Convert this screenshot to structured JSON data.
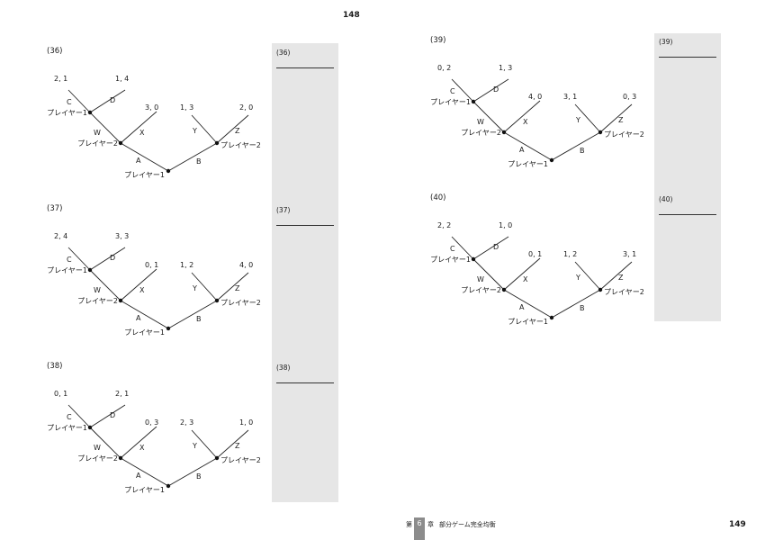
{
  "page_numbers": {
    "left": "148",
    "right": "149"
  },
  "footer": {
    "chapter_prefix": "第",
    "chapter_number": "6",
    "chapter_suffix": "章",
    "chapter_title": "部分ゲーム完全均衡"
  },
  "problems": [
    {
      "num": "(36)",
      "answer_label": "(36)",
      "payoffs": {
        "C": "2, 1",
        "D": "1, 4",
        "X": "3, 0",
        "Y": "1, 3",
        "Z": "2, 0"
      }
    },
    {
      "num": "(37)",
      "answer_label": "(37)",
      "payoffs": {
        "C": "2, 4",
        "D": "3, 3",
        "X": "0, 1",
        "Y": "1, 2",
        "Z": "4, 0"
      }
    },
    {
      "num": "(38)",
      "answer_label": "(38)",
      "payoffs": {
        "C": "0, 1",
        "D": "2, 1",
        "X": "0, 3",
        "Y": "2, 3",
        "Z": "1, 0"
      }
    },
    {
      "num": "(39)",
      "answer_label": "(39)",
      "payoffs": {
        "C": "0, 2",
        "D": "1, 3",
        "X": "4, 0",
        "Y": "3, 1",
        "Z": "0, 3"
      }
    },
    {
      "num": "(40)",
      "answer_label": "(40)",
      "payoffs": {
        "C": "2, 2",
        "D": "1, 0",
        "X": "0, 1",
        "Y": "1, 2",
        "Z": "3, 1"
      }
    }
  ],
  "tree_labels": {
    "player1": "プレイヤー1",
    "player2": "プレイヤー2",
    "edges": {
      "A": "A",
      "B": "B",
      "W": "W",
      "X": "X",
      "Y": "Y",
      "Z": "Z",
      "C": "C",
      "D": "D"
    }
  }
}
